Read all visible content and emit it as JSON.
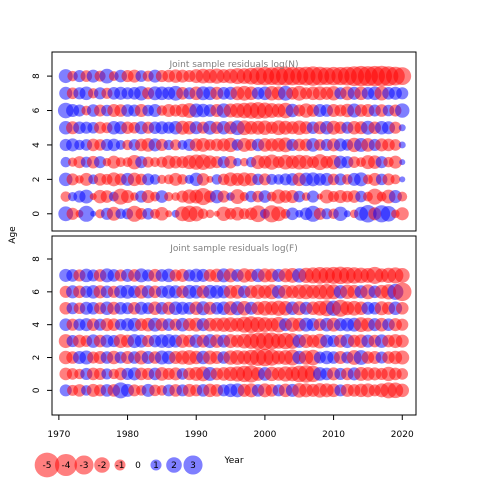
{
  "chart_data": {
    "type": "scatter",
    "encoding": "bubble residual plot",
    "ylabel": "Age",
    "xlabel": "Year",
    "x_ticks": [
      1970,
      1980,
      1990,
      2000,
      2010,
      2020
    ],
    "y_ticks": [
      0,
      2,
      4,
      6,
      8
    ],
    "xlim": [
      1969,
      2022
    ],
    "years": [
      1971,
      2020
    ],
    "colors": {
      "positive": "#0000ff",
      "negative": "#ff0000"
    },
    "panels": [
      {
        "title": "Joint sample residuals log(N)",
        "ages": [
          0,
          1,
          2,
          3,
          4,
          5,
          6,
          7,
          8
        ],
        "ylim": [
          -1,
          9.4
        ],
        "residuals": [
          [
            1.8,
            -1.2,
            -0.5,
            2.1,
            0.3,
            -0.7,
            1.2,
            -1.6,
            0.9,
            1.0,
            -2.1,
            -1.1,
            1.1,
            -0.8,
            -1.5,
            -0.4,
            0.5,
            -1.8,
            -2.2,
            -1.9,
            -0.9,
            -0.6,
            -0.3,
            -1.7,
            -1.1,
            -1.5,
            -1.0,
            -1.3,
            -2.3,
            0.8,
            -2.4,
            -1.8,
            -0.8,
            1.3,
            0.5,
            1.3,
            2.1,
            -1.2,
            1.0,
            -0.9,
            1.7,
            0.4,
            -0.6,
            1.6,
            2.5,
            -1.4,
            2.4,
            2.0,
            -0.6,
            -1.4
          ],
          [
            -0.9,
            0.7,
            1.2,
            1.6,
            -0.4,
            -1.5,
            -1.3,
            0.8,
            -2.1,
            -1.4,
            -0.6,
            1.2,
            -1.4,
            -0.8,
            1.3,
            -0.7,
            -0.6,
            -1.2,
            -1.7,
            -1.6,
            -2.4,
            -1.2,
            1.5,
            -1.2,
            0.6,
            -1.8,
            -0.7,
            1.1,
            -1.1,
            1.3,
            -0.8,
            -1.7,
            -1.3,
            -1.4,
            1.1,
            -0.6,
            1.2,
            -0.3,
            -1.6,
            -1.0,
            -1.4,
            -1.1,
            -1.3,
            1.1,
            -0.8,
            -2.1,
            -0.8,
            -1.6,
            1.4,
            -0.8
          ],
          [
            1.5,
            -1.2,
            -0.6,
            -1.4,
            0.8,
            -1.3,
            -1.0,
            -1.6,
            -1.2,
            1.4,
            -1.5,
            -1.1,
            1.2,
            0.9,
            -0.7,
            -0.8,
            -1.4,
            -0.9,
            0.7,
            1.5,
            -1.3,
            -0.4,
            0.9,
            -1.1,
            -1.6,
            -1.4,
            -1.6,
            -1.4,
            1.1,
            -1.2,
            1.0,
            0.9,
            1.2,
            1.3,
            -1.5,
            1.5,
            1.6,
            1.3,
            1.4,
            -1.1,
            1.2,
            -0.9,
            1.4,
            1.6,
            -0.8,
            -1.4,
            1.1,
            -1.2,
            -0.8,
            0.3
          ],
          [
            0.9,
            -0.7,
            -1.2,
            1.0,
            -1.3,
            1.2,
            -0.6,
            -1.4,
            -0.8,
            -0.8,
            -1.7,
            1.2,
            -1.0,
            -0.8,
            -1.0,
            -1.5,
            -1.3,
            -1.2,
            -1.6,
            -1.9,
            -2.0,
            -1.5,
            -1.2,
            1.2,
            -1.3,
            0.6,
            -0.6,
            0.9,
            -1.6,
            -1.4,
            -1.9,
            -1.2,
            -1.8,
            -1.5,
            -1.8,
            -1.6,
            -1.2,
            -2.1,
            -1.3,
            -1.7,
            1.4,
            1.2,
            -1.1,
            -0.8,
            -1.6,
            -1.5,
            1.2,
            -0.9,
            -1.4,
            0.3
          ],
          [
            1.2,
            1.4,
            0.9,
            1.1,
            -1.3,
            -1.1,
            1.2,
            1.3,
            0.8,
            -0.9,
            1.1,
            -1.3,
            -1.5,
            1.4,
            -1.2,
            0.9,
            -1.0,
            0.8,
            1.2,
            -1.4,
            -1.6,
            -1.1,
            -1.3,
            -1.4,
            -1.7,
            1.1,
            -1.6,
            -1.2,
            1.3,
            -1.5,
            -1.4,
            -1.6,
            -1.8,
            1.2,
            -1.3,
            -1.3,
            1.5,
            -1.1,
            1.2,
            -1.4,
            1.4,
            1.1,
            -1.7,
            1.6,
            -1.5,
            1.2,
            -1.4,
            -1.3,
            -1.1,
            0.4
          ],
          [
            1.5,
            -1.4,
            1.3,
            1.2,
            1.1,
            -1.2,
            -1.0,
            1.5,
            1.4,
            -1.3,
            -1.1,
            1.4,
            -1.2,
            1.3,
            1.4,
            1.2,
            1.5,
            -1.6,
            -1.5,
            1.4,
            -1.2,
            1.6,
            -1.3,
            1.5,
            -1.4,
            1.8,
            -1.8,
            -1.5,
            -1.6,
            -1.7,
            -1.3,
            -1.8,
            -1.6,
            -1.4,
            -1.7,
            -1.4,
            1.3,
            -1.4,
            1.5,
            -1.6,
            -1.3,
            1.2,
            -1.5,
            -1.4,
            1.6,
            -1.3,
            1.5,
            1.4,
            -1.2,
            0.4
          ],
          [
            2.0,
            1.4,
            1.2,
            -0.8,
            1.3,
            -1.2,
            1.1,
            -1.4,
            -1.3,
            1.3,
            1.2,
            -1.4,
            1.1,
            1.4,
            -0.9,
            -1.4,
            -1.2,
            -1.5,
            -1.8,
            1.6,
            1.5,
            1.3,
            -1.4,
            1.7,
            -1.6,
            -1.8,
            -2.0,
            -2.2,
            -2.3,
            -2.1,
            -1.8,
            -1.6,
            -2.0,
            1.5,
            -1.2,
            -1.7,
            -1.3,
            1.4,
            1.3,
            -1.4,
            -1.2,
            -1.5,
            1.6,
            -1.3,
            -1.4,
            1.2,
            -1.3,
            1.1,
            -1.2,
            1.7
          ],
          [
            1.4,
            -1.1,
            1.2,
            1.5,
            -0.9,
            1.2,
            -1.0,
            1.3,
            1.4,
            1.2,
            1.3,
            1.7,
            -1.2,
            1.6,
            1.5,
            1.4,
            1.8,
            -1.3,
            1.2,
            -1.5,
            1.6,
            1.5,
            -1.4,
            1.3,
            1.4,
            -1.6,
            -1.8,
            -1.5,
            1.3,
            1.5,
            -1.7,
            -1.6,
            1.8,
            -1.3,
            -1.8,
            -1.2,
            -1.5,
            -1.6,
            -1.4,
            -1.7,
            1.2,
            -1.6,
            1.4,
            -1.5,
            1.3,
            1.5,
            -1.7,
            1.3,
            1.4,
            1.2
          ],
          [
            1.6,
            -0.9,
            1.2,
            -1.1,
            1.4,
            -1.0,
            1.8,
            -0.8,
            1.3,
            -1.2,
            -1.4,
            1.1,
            -1.0,
            1.4,
            -1.2,
            -1.3,
            -1.5,
            -1.4,
            -1.2,
            -1.6,
            -1.8,
            -1.7,
            -1.9,
            -1.6,
            -1.8,
            -2.1,
            -2.0,
            -2.3,
            -2.6,
            -2.8,
            -2.6,
            -2.9,
            -3.0,
            -2.8,
            -2.7,
            -2.9,
            -3.1,
            -2.9,
            -2.6,
            -2.8,
            -2.7,
            -2.9,
            -3.2,
            -3.4,
            -3.3,
            -3.4,
            -3.5,
            -3.2,
            -2.9,
            -2.6
          ]
        ]
      },
      {
        "title": "Joint sample residuals log(F)",
        "ages": [
          0,
          1,
          2,
          3,
          4,
          5,
          6,
          7
        ],
        "ylim": [
          -1.5,
          9.4
        ],
        "residuals": [
          [
            1.2,
            -1.0,
            -1.3,
            0.9,
            -1.4,
            -1.2,
            1.3,
            -1.3,
            2.1,
            1.4,
            -1.2,
            -0.9,
            1.4,
            -1.1,
            -0.9,
            1.2,
            -1.3,
            1.2,
            -1.4,
            -1.2,
            1.3,
            -1.5,
            -1.3,
            1.2,
            1.5,
            1.6,
            -1.4,
            -1.6,
            1.3,
            -1.6,
            -1.3,
            1.2,
            -1.5,
            1.4,
            -1.7,
            -1.6,
            -1.4,
            -1.7,
            -1.6,
            -1.5,
            1.2,
            -1.4,
            -1.3,
            -1.5,
            -1.6,
            -1.2,
            -1.6,
            -2.1,
            -2.0,
            -1.5
          ],
          [
            -1.3,
            -1.1,
            -0.9,
            1.2,
            -1.3,
            -1.2,
            1.0,
            -0.9,
            -1.3,
            1.2,
            1.4,
            -1.3,
            -1.2,
            1.3,
            -1.5,
            -1.2,
            -1.4,
            1.1,
            -1.3,
            -1.6,
            -1.8,
            1.6,
            -1.3,
            -1.5,
            -1.7,
            -1.9,
            -2.2,
            -2.4,
            -1.6,
            1.5,
            -1.7,
            -1.5,
            -1.9,
            -1.8,
            -2.3,
            -2.5,
            -2.2,
            1.5,
            1.3,
            -1.4,
            1.2,
            -1.3,
            1.4,
            -1.6,
            -1.5,
            -1.4,
            -1.2,
            -1.7,
            -1.3,
            -1.1
          ],
          [
            -1.5,
            -1.3,
            1.4,
            1.6,
            -1.2,
            -1.4,
            1.3,
            -1.5,
            1.2,
            -1.4,
            1.3,
            -1.6,
            1.4,
            -1.3,
            1.6,
            1.5,
            -1.4,
            -1.6,
            -1.8,
            -1.5,
            1.5,
            -1.6,
            -1.4,
            1.3,
            -1.7,
            -1.8,
            -1.6,
            -2.0,
            -2.3,
            -2.5,
            -2.2,
            -1.6,
            -1.8,
            -2.1,
            1.5,
            -1.7,
            -2.0,
            1.2,
            1.5,
            1.3,
            -1.4,
            1.2,
            -1.8,
            1.8,
            -1.3,
            -1.4,
            1.2,
            -1.3,
            -1.5,
            -1.6
          ],
          [
            -1.6,
            1.2,
            -1.4,
            -1.1,
            1.5,
            -1.3,
            1.4,
            1.2,
            -1.6,
            -1.4,
            1.6,
            1.4,
            -1.2,
            1.3,
            1.5,
            1.6,
            1.4,
            -1.5,
            -1.3,
            1.5,
            -1.4,
            1.6,
            -1.5,
            1.4,
            -1.6,
            -1.4,
            -1.8,
            -2.0,
            -2.3,
            -2.6,
            -2.4,
            -1.9,
            -2.2,
            -2.0,
            1.5,
            -1.6,
            -1.4,
            -1.8,
            1.4,
            1.2,
            -1.4,
            1.6,
            -1.3,
            -1.5,
            1.4,
            -1.3,
            1.5,
            -1.3,
            -1.6,
            -1.4
          ],
          [
            1.3,
            -1.2,
            1.2,
            1.4,
            -1.3,
            1.2,
            -1.4,
            -1.3,
            1.1,
            1.4,
            1.5,
            -1.3,
            -1.5,
            1.6,
            -1.4,
            1.3,
            -1.2,
            1.5,
            -1.4,
            -1.6,
            1.4,
            -1.5,
            -1.6,
            -1.7,
            -1.8,
            -1.6,
            -2.1,
            -2.3,
            -2.0,
            -1.8,
            -1.6,
            -2.0,
            1.4,
            -1.7,
            -1.5,
            1.6,
            1.4,
            -1.3,
            1.5,
            -1.6,
            1.4,
            1.5,
            1.6,
            -1.8,
            -1.6,
            1.4,
            -1.5,
            1.3,
            -1.4,
            -1.2
          ],
          [
            -1.3,
            1.2,
            -1.1,
            1.4,
            1.3,
            -1.2,
            1.5,
            -1.4,
            1.3,
            1.2,
            -1.3,
            1.4,
            1.2,
            -1.5,
            1.3,
            -1.4,
            1.5,
            1.4,
            1.3,
            -1.5,
            1.6,
            -1.4,
            1.3,
            1.5,
            -1.6,
            1.6,
            -1.7,
            1.4,
            -1.5,
            -1.8,
            -1.6,
            -1.9,
            -1.7,
            1.5,
            -1.6,
            1.4,
            -1.5,
            -1.8,
            -2.1,
            1.9,
            -2.4,
            -1.6,
            -1.8,
            -1.5,
            1.4,
            1.3,
            -1.6,
            -1.4,
            1.5,
            -1.3
          ],
          [
            -1.2,
            1.4,
            -1.3,
            1.2,
            1.5,
            -1.4,
            1.3,
            -1.2,
            1.4,
            1.6,
            1.3,
            -1.5,
            1.4,
            -1.3,
            1.2,
            1.5,
            1.4,
            -1.3,
            1.6,
            1.5,
            -1.4,
            1.6,
            1.5,
            1.4,
            -1.5,
            -1.6,
            1.3,
            -1.4,
            -1.7,
            -1.5,
            -1.8,
            1.5,
            -1.6,
            -1.4,
            -1.7,
            -1.8,
            -1.6,
            -1.8,
            -2.0,
            -1.8,
            1.5,
            -1.7,
            -1.6,
            1.4,
            -1.8,
            1.3,
            -1.6,
            -1.9,
            2.1,
            -2.8
          ],
          [
            1.4,
            1.3,
            -1.2,
            1.5,
            1.2,
            -1.3,
            1.6,
            1.3,
            -1.2,
            1.4,
            -1.3,
            1.6,
            1.2,
            -1.4,
            1.3,
            1.5,
            -1.2,
            -1.4,
            1.2,
            1.5,
            1.4,
            -1.3,
            -1.5,
            1.6,
            -1.6,
            1.3,
            -1.7,
            -1.4,
            1.5,
            -1.6,
            -1.5,
            1.4,
            -1.6,
            -1.8,
            1.7,
            -1.9,
            -2.1,
            -2.3,
            -2.2,
            -2.4,
            -2.5,
            -2.3,
            -2.2,
            -2.0,
            -1.8,
            -2.4,
            -1.6,
            -1.9,
            -2.1,
            -1.8
          ]
        ]
      }
    ],
    "legend": {
      "placement": "bottom-left",
      "values": [
        -5,
        -4,
        -3,
        -2,
        -1,
        0,
        1,
        2,
        3
      ],
      "labels": [
        "-5",
        "-4",
        "-3",
        "-2",
        "-1",
        "0",
        "1",
        "2",
        "3"
      ]
    }
  }
}
